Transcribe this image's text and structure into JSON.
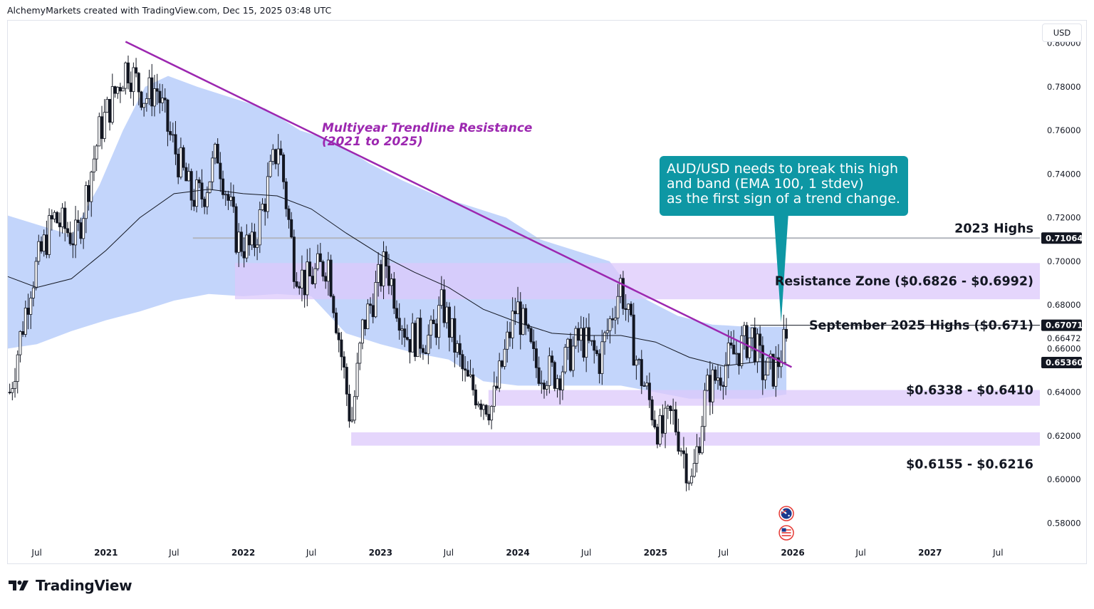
{
  "header": {
    "credit": "AlchemyMarkets created with TradingView.com, Dec 15, 2025 03:48 UTC"
  },
  "currency_button": {
    "label": "USD"
  },
  "brand": {
    "name": "TradingView",
    "icon": "tradingview-logo-icon"
  },
  "colors": {
    "trendline": "#9c27b0",
    "band": "#bcd0fb",
    "zone": "#dcc8fb",
    "callout": "#0e97a4",
    "candle": "#131722",
    "ema": "#131722",
    "level_line": "#b2b5be"
  },
  "chart_data": {
    "type": "candlestick",
    "symbol": "AUD/USD",
    "timeframe": "weekly",
    "ylim": [
      0.57,
      0.81
    ],
    "xlim": [
      "2020-04-15",
      "2027-10-20"
    ],
    "y_ticks": [
      "0.58000",
      "0.60000",
      "0.62000",
      "0.64000",
      "0.66000",
      "0.68000",
      "0.70000",
      "0.72000",
      "0.74000",
      "0.76000",
      "0.78000",
      "0.80000"
    ],
    "x_ticks": [
      {
        "label": "Jul",
        "date": "2020-07-01"
      },
      {
        "label": "2021",
        "date": "2021-01-01"
      },
      {
        "label": "Jul",
        "date": "2021-07-01"
      },
      {
        "label": "2022",
        "date": "2022-01-01"
      },
      {
        "label": "Jul",
        "date": "2022-07-01"
      },
      {
        "label": "2023",
        "date": "2023-01-01"
      },
      {
        "label": "Jul",
        "date": "2023-07-01"
      },
      {
        "label": "2024",
        "date": "2024-01-01"
      },
      {
        "label": "Jul",
        "date": "2024-07-01"
      },
      {
        "label": "2025",
        "date": "2025-01-01"
      },
      {
        "label": "Jul",
        "date": "2025-07-01"
      },
      {
        "label": "2026",
        "date": "2026-01-01"
      },
      {
        "label": "Jul",
        "date": "2026-07-01"
      },
      {
        "label": "2027",
        "date": "2027-01-01"
      },
      {
        "label": "Jul",
        "date": "2027-07-01"
      }
    ],
    "price_path": [
      [
        "2020-04-20",
        0.64
      ],
      [
        "2020-06-15",
        0.69
      ],
      [
        "2020-08-15",
        0.72
      ],
      [
        "2020-10-15",
        0.71
      ],
      [
        "2020-12-15",
        0.76
      ],
      [
        "2021-02-25",
        0.79
      ],
      [
        "2021-04-15",
        0.775
      ],
      [
        "2021-05-15",
        0.78
      ],
      [
        "2021-06-15",
        0.76
      ],
      [
        "2021-08-15",
        0.73
      ],
      [
        "2021-09-15",
        0.73
      ],
      [
        "2021-10-25",
        0.75
      ],
      [
        "2021-12-15",
        0.71
      ],
      [
        "2022-01-25",
        0.705
      ],
      [
        "2022-04-05",
        0.755
      ],
      [
        "2022-05-15",
        0.7
      ],
      [
        "2022-06-15",
        0.69
      ],
      [
        "2022-08-15",
        0.7
      ],
      [
        "2022-10-15",
        0.625
      ],
      [
        "2022-11-15",
        0.67
      ],
      [
        "2023-01-15",
        0.7
      ],
      [
        "2023-02-15",
        0.68
      ],
      [
        "2023-03-15",
        0.665
      ],
      [
        "2023-05-15",
        0.665
      ],
      [
        "2023-06-15",
        0.68
      ],
      [
        "2023-08-15",
        0.645
      ],
      [
        "2023-10-25",
        0.633
      ],
      [
        "2023-12-28",
        0.68
      ],
      [
        "2024-02-15",
        0.652
      ],
      [
        "2024-04-15",
        0.648
      ],
      [
        "2024-06-15",
        0.665
      ],
      [
        "2024-08-05",
        0.655
      ],
      [
        "2024-09-30",
        0.69
      ],
      [
        "2024-11-15",
        0.652
      ],
      [
        "2025-01-15",
        0.62
      ],
      [
        "2025-02-15",
        0.63
      ],
      [
        "2025-04-08",
        0.598
      ],
      [
        "2025-05-15",
        0.64
      ],
      [
        "2025-07-15",
        0.655
      ],
      [
        "2025-09-15",
        0.666
      ],
      [
        "2025-10-15",
        0.649
      ],
      [
        "2025-11-15",
        0.65
      ],
      [
        "2025-12-15",
        0.6647
      ]
    ],
    "band_upper": [
      [
        "2020-04-15",
        0.721
      ],
      [
        "2020-10-01",
        0.712
      ],
      [
        "2020-12-15",
        0.735
      ],
      [
        "2021-02-15",
        0.76
      ],
      [
        "2021-04-15",
        0.78
      ],
      [
        "2021-06-15",
        0.785
      ],
      [
        "2021-09-01",
        0.78
      ],
      [
        "2021-12-01",
        0.775
      ],
      [
        "2022-03-01",
        0.77
      ],
      [
        "2022-06-01",
        0.76
      ],
      [
        "2022-09-01",
        0.755
      ],
      [
        "2022-12-01",
        0.745
      ],
      [
        "2023-03-01",
        0.737
      ],
      [
        "2023-06-01",
        0.73
      ],
      [
        "2023-09-01",
        0.725
      ],
      [
        "2023-12-01",
        0.72
      ],
      [
        "2024-03-01",
        0.71
      ],
      [
        "2024-06-01",
        0.705
      ],
      [
        "2024-09-01",
        0.7
      ],
      [
        "2024-10-15",
        0.69
      ],
      [
        "2024-12-01",
        0.683
      ],
      [
        "2025-03-01",
        0.675
      ],
      [
        "2025-06-01",
        0.671
      ],
      [
        "2025-09-01",
        0.67
      ],
      [
        "2025-12-15",
        0.67
      ]
    ],
    "band_lower": [
      [
        "2020-04-15",
        0.66
      ],
      [
        "2020-07-01",
        0.662
      ],
      [
        "2020-10-01",
        0.668
      ],
      [
        "2021-01-01",
        0.673
      ],
      [
        "2021-04-01",
        0.677
      ],
      [
        "2021-07-01",
        0.682
      ],
      [
        "2021-10-01",
        0.685
      ],
      [
        "2022-01-01",
        0.684
      ],
      [
        "2022-04-01",
        0.685
      ],
      [
        "2022-07-01",
        0.684
      ],
      [
        "2022-10-01",
        0.667
      ],
      [
        "2023-01-01",
        0.662
      ],
      [
        "2023-04-01",
        0.658
      ],
      [
        "2023-07-01",
        0.655
      ],
      [
        "2023-10-01",
        0.645
      ],
      [
        "2024-01-01",
        0.643
      ],
      [
        "2024-04-01",
        0.643
      ],
      [
        "2024-07-01",
        0.643
      ],
      [
        "2024-10-01",
        0.643
      ],
      [
        "2025-01-01",
        0.64
      ],
      [
        "2025-04-01",
        0.637
      ],
      [
        "2025-07-01",
        0.637
      ],
      [
        "2025-10-01",
        0.637
      ],
      [
        "2025-12-15",
        0.639
      ]
    ],
    "ema_100": [
      [
        "2020-04-15",
        0.693
      ],
      [
        "2020-07-01",
        0.688
      ],
      [
        "2020-10-01",
        0.692
      ],
      [
        "2021-01-01",
        0.705
      ],
      [
        "2021-04-01",
        0.72
      ],
      [
        "2021-07-01",
        0.731
      ],
      [
        "2021-10-01",
        0.733
      ],
      [
        "2022-01-01",
        0.731
      ],
      [
        "2022-04-01",
        0.73
      ],
      [
        "2022-07-01",
        0.724
      ],
      [
        "2022-10-01",
        0.713
      ],
      [
        "2023-01-01",
        0.703
      ],
      [
        "2023-04-01",
        0.695
      ],
      [
        "2023-07-01",
        0.688
      ],
      [
        "2023-10-01",
        0.678
      ],
      [
        "2024-01-01",
        0.672
      ],
      [
        "2024-04-01",
        0.667
      ],
      [
        "2024-07-01",
        0.666
      ],
      [
        "2024-10-01",
        0.666
      ],
      [
        "2025-01-01",
        0.663
      ],
      [
        "2025-04-01",
        0.656
      ],
      [
        "2025-07-01",
        0.652
      ],
      [
        "2025-10-01",
        0.654
      ],
      [
        "2025-12-15",
        0.6536
      ]
    ],
    "trendline": {
      "start": [
        "2021-02-22",
        0.8007
      ],
      "end": [
        "2025-12-29",
        0.6515
      ]
    },
    "zones": [
      {
        "name": "resistance-zone",
        "start": "2021-12-10",
        "low": 0.6826,
        "high": 0.6992
      },
      {
        "name": "support-zone-upper",
        "start": "2023-10-15",
        "low": 0.6338,
        "high": 0.641
      },
      {
        "name": "support-zone-lower",
        "start": "2022-10-15",
        "low": 0.6155,
        "high": 0.6216
      }
    ],
    "levels": [
      {
        "name": "2023-highs-line",
        "value": 0.71064,
        "start": "2021-08-20"
      },
      {
        "name": "september-2025-highs-line",
        "value": 0.67071,
        "start": "2025-09-10"
      }
    ],
    "price_tags": [
      {
        "name": "price-tag-2023-highs",
        "value": 0.71064,
        "label": "0.71064",
        "style": "dark"
      },
      {
        "name": "price-tag-sept-highs",
        "value": 0.67071,
        "label": "0.67071",
        "style": "dark"
      },
      {
        "name": "price-tag-current",
        "value": 0.66472,
        "label": "0.66472",
        "style": "plain"
      },
      {
        "name": "price-tag-ema",
        "value": 0.6536,
        "label": "0.65360",
        "style": "dark"
      }
    ],
    "annotations": [
      {
        "name": "trendline-label",
        "lines": [
          "Multiyear Trendline Resistance",
          "(2021 to 2025)"
        ]
      },
      {
        "name": "label-2023-highs",
        "text": "2023 Highs"
      },
      {
        "name": "label-resistance-zone",
        "text": "Resistance Zone ($0.6826 - $0.6992)"
      },
      {
        "name": "label-september-highs",
        "text": "September 2025 Highs ($0.671)"
      },
      {
        "name": "label-support-upper",
        "text": "$0.6338 - $0.6410"
      },
      {
        "name": "label-support-lower",
        "text": "$0.6155 - $0.6216"
      }
    ],
    "callout": {
      "lines": [
        "AUD/USD needs to break this high",
        "and band (EMA 100, 1 stdev)",
        "as the first sign of a trend change."
      ],
      "points_to": [
        "2025-12-01",
        0.67
      ]
    },
    "event_icons": [
      {
        "name": "australia-flag-icon",
        "date": "2025-12-15"
      },
      {
        "name": "us-flag-icon",
        "date": "2025-12-15"
      }
    ]
  }
}
